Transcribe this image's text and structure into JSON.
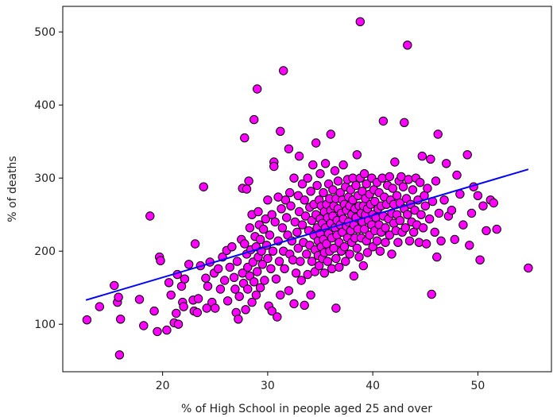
{
  "chart_data": {
    "type": "scatter",
    "title": "",
    "xlabel": "% of High School in people aged 25 and over",
    "ylabel": "% of deaths",
    "xlim": [
      10.5,
      57.0
    ],
    "ylim": [
      35,
      535
    ],
    "x_ticks": [
      20,
      30,
      40,
      50
    ],
    "y_ticks": [
      100,
      200,
      300,
      400,
      500
    ],
    "grid": false,
    "legend": "none",
    "marker_color": "#ff00ff",
    "marker_edge_color": "#000000",
    "line_color": "#0000ff",
    "points": [
      [
        12.8,
        106
      ],
      [
        14.0,
        124
      ],
      [
        15.4,
        153
      ],
      [
        15.7,
        130
      ],
      [
        15.8,
        137
      ],
      [
        16.0,
        107
      ],
      [
        15.9,
        58
      ],
      [
        17.8,
        134
      ],
      [
        18.2,
        98
      ],
      [
        18.8,
        248
      ],
      [
        19.2,
        118
      ],
      [
        19.5,
        90
      ],
      [
        19.7,
        192
      ],
      [
        19.8,
        187
      ],
      [
        20.4,
        92
      ],
      [
        20.6,
        157
      ],
      [
        20.8,
        140
      ],
      [
        21.1,
        102
      ],
      [
        21.3,
        115
      ],
      [
        21.4,
        168
      ],
      [
        21.5,
        100
      ],
      [
        21.8,
        152
      ],
      [
        21.9,
        130
      ],
      [
        22.0,
        124
      ],
      [
        22.1,
        162
      ],
      [
        22.5,
        182
      ],
      [
        22.9,
        133
      ],
      [
        23.0,
        118
      ],
      [
        23.1,
        210
      ],
      [
        23.3,
        116
      ],
      [
        23.4,
        135
      ],
      [
        23.6,
        180
      ],
      [
        23.9,
        288
      ],
      [
        24.1,
        163
      ],
      [
        24.2,
        122
      ],
      [
        24.3,
        152
      ],
      [
        24.5,
        185
      ],
      [
        24.7,
        130
      ],
      [
        24.9,
        170
      ],
      [
        25.0,
        122
      ],
      [
        25.3,
        176
      ],
      [
        25.5,
        148
      ],
      [
        25.7,
        192
      ],
      [
        25.9,
        160
      ],
      [
        26.1,
        201
      ],
      [
        26.2,
        132
      ],
      [
        26.4,
        178
      ],
      [
        26.6,
        206
      ],
      [
        26.8,
        164
      ],
      [
        26.9,
        148
      ],
      [
        27.0,
        116
      ],
      [
        27.1,
        186
      ],
      [
        27.2,
        107
      ],
      [
        27.3,
        138
      ],
      [
        27.5,
        216
      ],
      [
        27.6,
        286
      ],
      [
        27.6,
        170
      ],
      [
        27.7,
        156
      ],
      [
        27.8,
        210
      ],
      [
        27.8,
        355
      ],
      [
        27.9,
        120
      ],
      [
        28.0,
        285
      ],
      [
        28.0,
        196
      ],
      [
        28.1,
        178
      ],
      [
        28.1,
        148
      ],
      [
        28.2,
        296
      ],
      [
        28.3,
        232
      ],
      [
        28.3,
        166
      ],
      [
        28.4,
        202
      ],
      [
        28.5,
        250
      ],
      [
        28.5,
        130
      ],
      [
        28.6,
        185
      ],
      [
        28.7,
        158
      ],
      [
        28.7,
        380
      ],
      [
        28.8,
        220
      ],
      [
        28.9,
        206
      ],
      [
        28.9,
        140
      ],
      [
        29.0,
        422
      ],
      [
        29.0,
        172
      ],
      [
        29.1,
        254
      ],
      [
        29.1,
        192
      ],
      [
        29.2,
        236
      ],
      [
        29.3,
        216
      ],
      [
        29.3,
        150
      ],
      [
        29.4,
        200
      ],
      [
        29.5,
        182
      ],
      [
        29.6,
        230
      ],
      [
        29.7,
        160
      ],
      [
        29.8,
        244
      ],
      [
        29.9,
        208
      ],
      [
        30.0,
        270
      ],
      [
        30.0,
        190
      ],
      [
        30.1,
        125
      ],
      [
        30.2,
        222
      ],
      [
        30.3,
        176
      ],
      [
        30.4,
        250
      ],
      [
        30.4,
        118
      ],
      [
        30.5,
        200
      ],
      [
        30.6,
        322
      ],
      [
        30.6,
        316
      ],
      [
        30.7,
        240
      ],
      [
        30.8,
        162
      ],
      [
        30.9,
        110
      ],
      [
        31.0,
        274
      ],
      [
        31.0,
        214
      ],
      [
        31.1,
        186
      ],
      [
        31.2,
        364
      ],
      [
        31.2,
        140
      ],
      [
        31.3,
        258
      ],
      [
        31.4,
        232
      ],
      [
        31.5,
        200
      ],
      [
        31.5,
        447
      ],
      [
        31.6,
        176
      ],
      [
        31.7,
        270
      ],
      [
        31.8,
        246
      ],
      [
        31.9,
        222
      ],
      [
        32.0,
        340
      ],
      [
        32.0,
        146
      ],
      [
        32.1,
        280
      ],
      [
        32.1,
        196
      ],
      [
        32.2,
        262
      ],
      [
        32.3,
        214
      ],
      [
        32.4,
        188
      ],
      [
        32.5,
        300
      ],
      [
        32.5,
        128
      ],
      [
        32.6,
        240
      ],
      [
        32.7,
        170
      ],
      [
        32.8,
        226
      ],
      [
        32.9,
        276
      ],
      [
        32.9,
        204
      ],
      [
        33.0,
        330
      ],
      [
        33.0,
        254
      ],
      [
        33.1,
        186
      ],
      [
        33.2,
        160
      ],
      [
        33.3,
        236
      ],
      [
        33.3,
        292
      ],
      [
        33.4,
        212
      ],
      [
        33.5,
        270
      ],
      [
        33.5,
        126
      ],
      [
        33.6,
        248
      ],
      [
        33.7,
        196
      ],
      [
        33.8,
        300
      ],
      [
        33.8,
        168
      ],
      [
        33.9,
        228
      ],
      [
        34.0,
        260
      ],
      [
        34.0,
        208
      ],
      [
        34.1,
        282
      ],
      [
        34.1,
        140
      ],
      [
        34.2,
        242
      ],
      [
        34.2,
        186
      ],
      [
        34.3,
        318
      ],
      [
        34.4,
        222
      ],
      [
        34.4,
        264
      ],
      [
        34.5,
        202
      ],
      [
        34.5,
        172
      ],
      [
        34.6,
        348
      ],
      [
        34.6,
        250
      ],
      [
        34.7,
        232
      ],
      [
        34.7,
        290
      ],
      [
        34.8,
        214
      ],
      [
        34.8,
        194
      ],
      [
        34.9,
        270
      ],
      [
        34.9,
        180
      ],
      [
        35.0,
        244
      ],
      [
        35.0,
        224
      ],
      [
        35.0,
        306
      ],
      [
        35.1,
        206
      ],
      [
        35.1,
        262
      ],
      [
        35.2,
        190
      ],
      [
        35.2,
        238
      ],
      [
        35.3,
        280
      ],
      [
        35.3,
        216
      ],
      [
        35.4,
        254
      ],
      [
        35.4,
        170
      ],
      [
        35.4,
        198
      ],
      [
        35.5,
        320
      ],
      [
        35.5,
        232
      ],
      [
        35.6,
        264
      ],
      [
        35.6,
        210
      ],
      [
        35.7,
        246
      ],
      [
        35.7,
        186
      ],
      [
        35.8,
        292
      ],
      [
        35.8,
        224
      ],
      [
        35.9,
        272
      ],
      [
        35.9,
        200
      ],
      [
        36.0,
        238
      ],
      [
        36.0,
        256
      ],
      [
        36.0,
        360
      ],
      [
        36.1,
        218
      ],
      [
        36.1,
        176
      ],
      [
        36.2,
        284
      ],
      [
        36.2,
        248
      ],
      [
        36.3,
        204
      ],
      [
        36.3,
        262
      ],
      [
        36.4,
        232
      ],
      [
        36.4,
        310
      ],
      [
        36.5,
        190
      ],
      [
        36.5,
        272
      ],
      [
        36.5,
        122
      ],
      [
        36.6,
        242
      ],
      [
        36.6,
        222
      ],
      [
        36.7,
        296
      ],
      [
        36.7,
        258
      ],
      [
        36.8,
        212
      ],
      [
        36.8,
        178
      ],
      [
        36.9,
        280
      ],
      [
        36.9,
        236
      ],
      [
        37.0,
        252
      ],
      [
        37.0,
        200
      ],
      [
        37.1,
        270
      ],
      [
        37.1,
        226
      ],
      [
        37.2,
        318
      ],
      [
        37.2,
        244
      ],
      [
        37.3,
        206
      ],
      [
        37.3,
        264
      ],
      [
        37.4,
        186
      ],
      [
        37.4,
        288
      ],
      [
        37.5,
        234
      ],
      [
        37.5,
        256
      ],
      [
        37.6,
        218
      ],
      [
        37.6,
        298
      ],
      [
        37.7,
        274
      ],
      [
        37.7,
        240
      ],
      [
        37.8,
        196
      ],
      [
        37.8,
        262
      ],
      [
        37.9,
        228
      ],
      [
        37.9,
        284
      ],
      [
        38.0,
        250
      ],
      [
        38.0,
        212
      ],
      [
        38.1,
        300
      ],
      [
        38.1,
        270
      ],
      [
        38.2,
        236
      ],
      [
        38.2,
        166
      ],
      [
        38.3,
        258
      ],
      [
        38.3,
        218
      ],
      [
        38.4,
        290
      ],
      [
        38.4,
        246
      ],
      [
        38.5,
        204
      ],
      [
        38.5,
        332
      ],
      [
        38.6,
        276
      ],
      [
        38.6,
        230
      ],
      [
        38.7,
        262
      ],
      [
        38.7,
        192
      ],
      [
        38.8,
        514
      ],
      [
        38.8,
        300
      ],
      [
        38.9,
        252
      ],
      [
        38.9,
        218
      ],
      [
        39.0,
        282
      ],
      [
        39.0,
        240
      ],
      [
        39.1,
        262
      ],
      [
        39.1,
        180
      ],
      [
        39.2,
        306
      ],
      [
        39.2,
        230
      ],
      [
        39.3,
        272
      ],
      [
        39.3,
        250
      ],
      [
        39.4,
        214
      ],
      [
        39.4,
        292
      ],
      [
        39.5,
        258
      ],
      [
        39.5,
        198
      ],
      [
        39.6,
        242
      ],
      [
        39.7,
        278
      ],
      [
        39.7,
        222
      ],
      [
        39.8,
        264
      ],
      [
        39.9,
        236
      ],
      [
        39.9,
        300
      ],
      [
        40.0,
        250
      ],
      [
        40.0,
        206
      ],
      [
        40.1,
        284
      ],
      [
        40.2,
        228
      ],
      [
        40.2,
        268
      ],
      [
        40.3,
        246
      ],
      [
        40.4,
        294
      ],
      [
        40.4,
        214
      ],
      [
        40.5,
        258
      ],
      [
        40.6,
        236
      ],
      [
        40.6,
        280
      ],
      [
        40.7,
        200
      ],
      [
        40.8,
        262
      ],
      [
        40.8,
        226
      ],
      [
        40.9,
        300
      ],
      [
        41.0,
        248
      ],
      [
        41.0,
        378
      ],
      [
        41.1,
        274
      ],
      [
        41.2,
        232
      ],
      [
        41.2,
        212
      ],
      [
        41.3,
        264
      ],
      [
        41.4,
        290
      ],
      [
        41.5,
        244
      ],
      [
        41.6,
        222
      ],
      [
        41.6,
        302
      ],
      [
        41.7,
        270
      ],
      [
        41.8,
        252
      ],
      [
        41.8,
        196
      ],
      [
        41.9,
        286
      ],
      [
        42.0,
        238
      ],
      [
        42.0,
        264
      ],
      [
        42.1,
        322
      ],
      [
        42.2,
        228
      ],
      [
        42.3,
        276
      ],
      [
        42.3,
        250
      ],
      [
        42.4,
        212
      ],
      [
        42.5,
        296
      ],
      [
        42.6,
        266
      ],
      [
        42.6,
        242
      ],
      [
        42.7,
        302
      ],
      [
        42.8,
        226
      ],
      [
        42.9,
        288
      ],
      [
        43.0,
        258
      ],
      [
        43.0,
        376
      ],
      [
        43.1,
        232
      ],
      [
        43.2,
        272
      ],
      [
        43.3,
        482
      ],
      [
        43.3,
        250
      ],
      [
        43.4,
        298
      ],
      [
        43.5,
        214
      ],
      [
        43.6,
        264
      ],
      [
        43.7,
        240
      ],
      [
        43.8,
        284
      ],
      [
        43.9,
        226
      ],
      [
        44.0,
        256
      ],
      [
        44.1,
        300
      ],
      [
        44.2,
        236
      ],
      [
        44.3,
        270
      ],
      [
        44.4,
        212
      ],
      [
        44.5,
        294
      ],
      [
        44.6,
        250
      ],
      [
        44.7,
        330
      ],
      [
        44.8,
        232
      ],
      [
        44.9,
        276
      ],
      [
        45.0,
        262
      ],
      [
        45.1,
        210
      ],
      [
        45.2,
        286
      ],
      [
        45.4,
        244
      ],
      [
        45.5,
        326
      ],
      [
        45.6,
        141
      ],
      [
        45.7,
        268
      ],
      [
        45.9,
        226
      ],
      [
        46.0,
        296
      ],
      [
        46.1,
        192
      ],
      [
        46.2,
        360
      ],
      [
        46.3,
        252
      ],
      [
        46.5,
        214
      ],
      [
        46.8,
        270
      ],
      [
        47.0,
        320
      ],
      [
        47.2,
        248
      ],
      [
        47.5,
        256
      ],
      [
        47.8,
        216
      ],
      [
        48.0,
        304
      ],
      [
        48.3,
        278
      ],
      [
        48.6,
        236
      ],
      [
        49.0,
        332
      ],
      [
        49.2,
        208
      ],
      [
        49.4,
        252
      ],
      [
        49.6,
        288
      ],
      [
        50.0,
        276
      ],
      [
        50.2,
        188
      ],
      [
        50.5,
        262
      ],
      [
        50.8,
        228
      ],
      [
        51.2,
        270
      ],
      [
        51.5,
        266
      ],
      [
        51.8,
        230
      ],
      [
        54.8,
        177
      ]
    ],
    "trend_line": {
      "x": [
        12.7,
        54.8
      ],
      "y": [
        133,
        312
      ]
    }
  }
}
